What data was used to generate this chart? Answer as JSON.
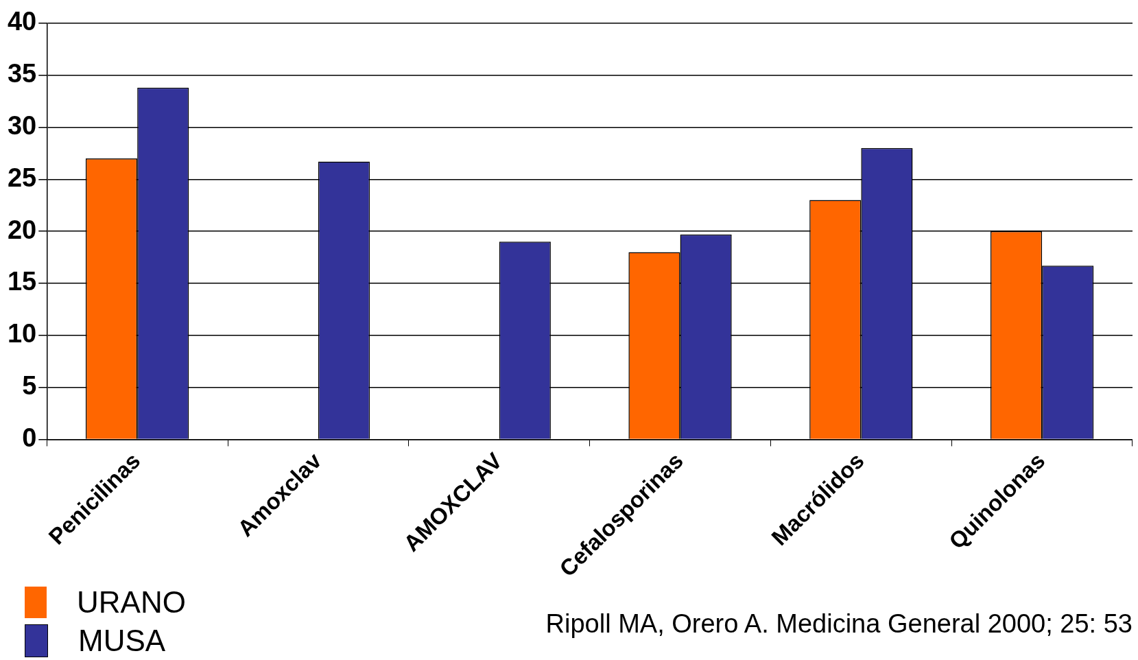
{
  "chart_data": {
    "type": "bar",
    "categories": [
      "Penicilinas",
      "Amoxclav",
      "AMOXCLAV",
      "Cefalosporinas",
      "Macrólidos",
      "Quinolonas"
    ],
    "series": [
      {
        "name": "URANO",
        "color": "#ff6600",
        "values": [
          27,
          null,
          null,
          18,
          23,
          20
        ]
      },
      {
        "name": "MUSA",
        "color": "#333399",
        "values": [
          33.8,
          26.7,
          19,
          19.7,
          28,
          16.7
        ]
      }
    ],
    "ylim": [
      0,
      40
    ],
    "yticks": [
      0,
      5,
      10,
      15,
      20,
      25,
      30,
      35,
      40
    ],
    "grid": "y",
    "legend": "bottom left",
    "annotations": [
      "Ripoll MA, Orero A. Medicina General 2000; 25: 53"
    ]
  }
}
